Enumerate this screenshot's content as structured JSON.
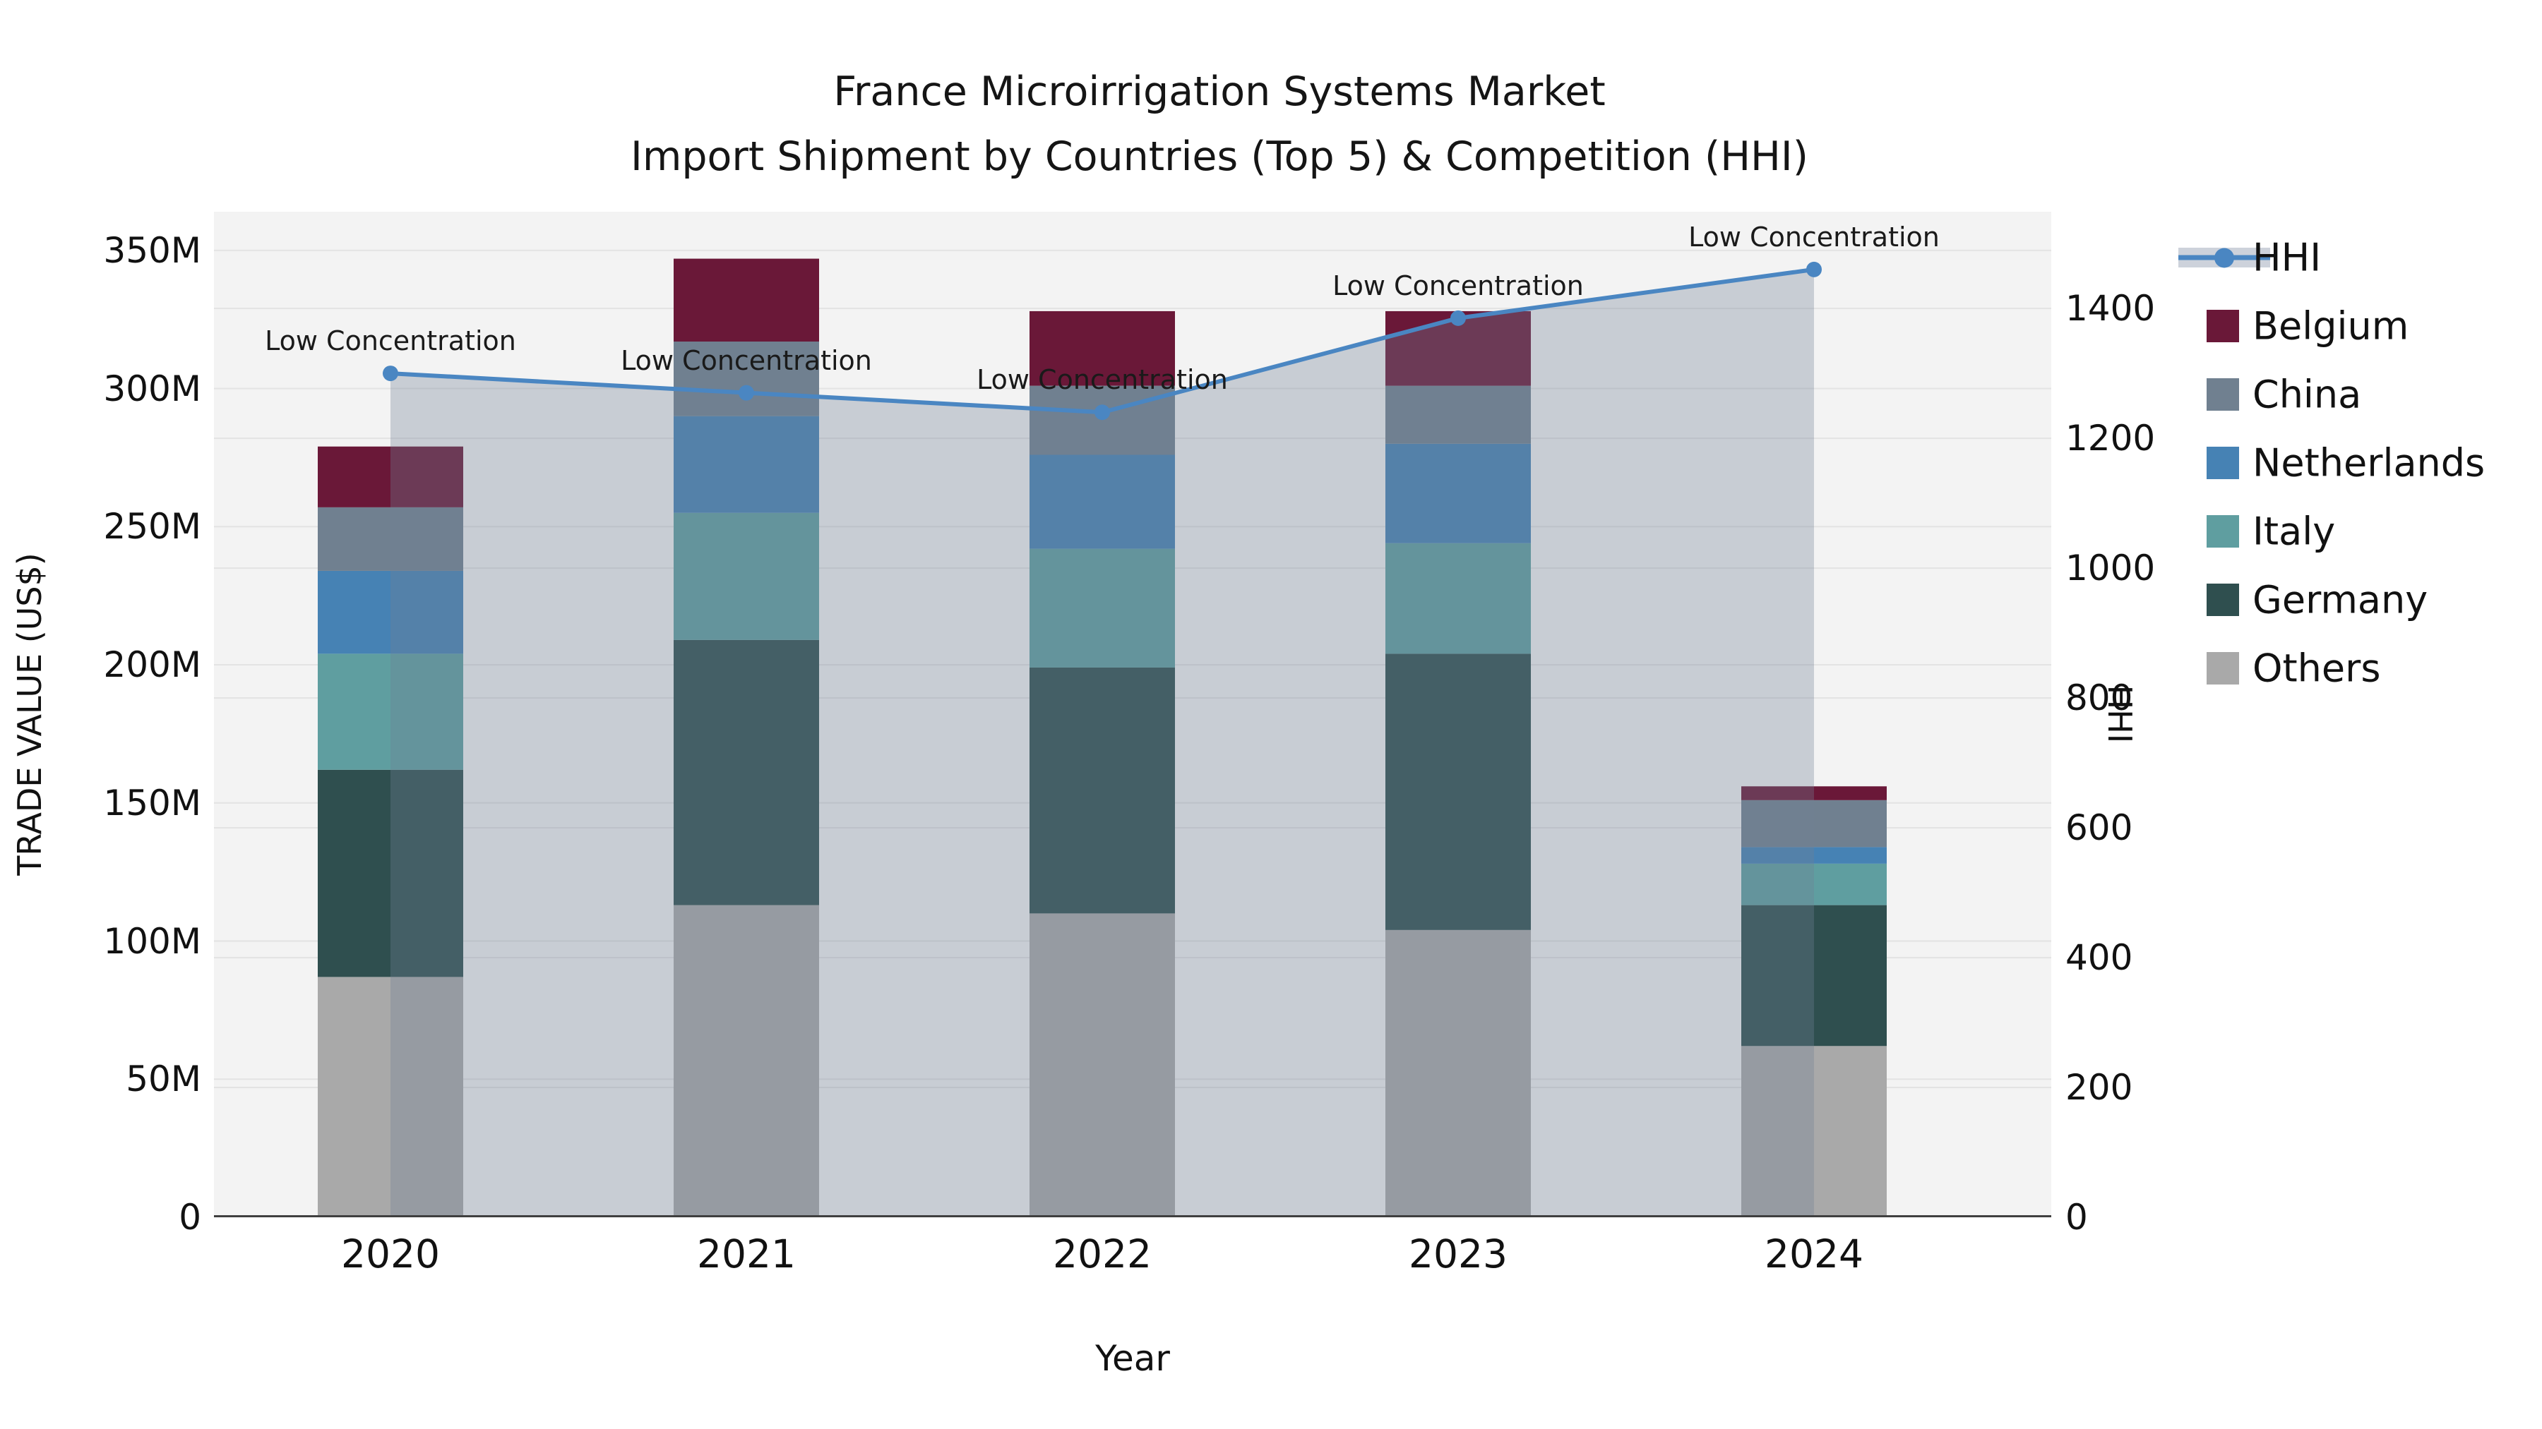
{
  "title": {
    "line1": "France Microirrigation Systems Market",
    "line2": "Import Shipment by Countries (Top 5) & Competition (HHI)"
  },
  "axes": {
    "x_label": "Year",
    "y_left_label": "TRADE VALUE (US$)",
    "y_right_label": "HHI",
    "y_left_ticks": [
      "0",
      "50M",
      "100M",
      "150M",
      "200M",
      "250M",
      "300M",
      "350M"
    ],
    "y_right_ticks": [
      "0",
      "200",
      "400",
      "600",
      "800",
      "1000",
      "1200",
      "1400"
    ],
    "x_ticks": [
      "2020",
      "2021",
      "2022",
      "2023",
      "2024"
    ]
  },
  "legend": {
    "items": [
      {
        "label": "HHI",
        "type": "line",
        "color": "#4a86c2"
      },
      {
        "label": "Belgium",
        "type": "swatch",
        "color": "#6a1838"
      },
      {
        "label": "China",
        "type": "swatch",
        "color": "#708090"
      },
      {
        "label": "Netherlands",
        "type": "swatch",
        "color": "#4682b4"
      },
      {
        "label": "Italy",
        "type": "swatch",
        "color": "#5f9ea0"
      },
      {
        "label": "Germany",
        "type": "swatch",
        "color": "#2f4f4f"
      },
      {
        "label": "Others",
        "type": "swatch",
        "color": "#a9a9a9"
      }
    ]
  },
  "chart_data": {
    "type": "bar",
    "subtype": "stacked-bar-with-line",
    "title": "France Microirrigation Systems Market — Import Shipment by Countries (Top 5) & Competition (HHI)",
    "categories": [
      "2020",
      "2021",
      "2022",
      "2023",
      "2024"
    ],
    "unit": "Million US$",
    "series": [
      {
        "name": "Others",
        "values": [
          87,
          113,
          110,
          104,
          62
        ],
        "color": "#a9a9a9"
      },
      {
        "name": "Germany",
        "values": [
          75,
          96,
          89,
          100,
          51
        ],
        "color": "#2f4f4f"
      },
      {
        "name": "Italy",
        "values": [
          42,
          46,
          43,
          40,
          15
        ],
        "color": "#5f9ea0"
      },
      {
        "name": "Netherlands",
        "values": [
          30,
          35,
          34,
          36,
          6
        ],
        "color": "#4682b4"
      },
      {
        "name": "China",
        "values": [
          23,
          27,
          25,
          21,
          17
        ],
        "color": "#708090"
      },
      {
        "name": "Belgium",
        "values": [
          22,
          30,
          27,
          27,
          5
        ],
        "color": "#6a1838"
      }
    ],
    "totals": [
      279,
      347,
      328,
      328,
      156
    ],
    "line_series": {
      "name": "HHI",
      "axis": "right",
      "values": [
        1300,
        1270,
        1240,
        1385,
        1460
      ],
      "color": "#4a86c2",
      "area_fill": "rgba(112,128,150,0.33)"
    },
    "annotations": [
      "Low Concentration",
      "Low Concentration",
      "Low Concentration",
      "Low Concentration",
      "Low Concentration"
    ],
    "xlabel": "Year",
    "ylabel_left": "TRADE VALUE (US$)",
    "ylabel_right": "HHI",
    "ylim_left": [
      0,
      364
    ],
    "ylim_right": [
      0,
      1549
    ],
    "grid": true,
    "legend_position": "right"
  },
  "colors": {
    "plot_bg": "#f3f3f3",
    "figure_bg": "#ffffff",
    "gridline": "#e3e3e3",
    "axis_line": "#3f3f3f",
    "annotation_text": "#1a1a1a"
  }
}
